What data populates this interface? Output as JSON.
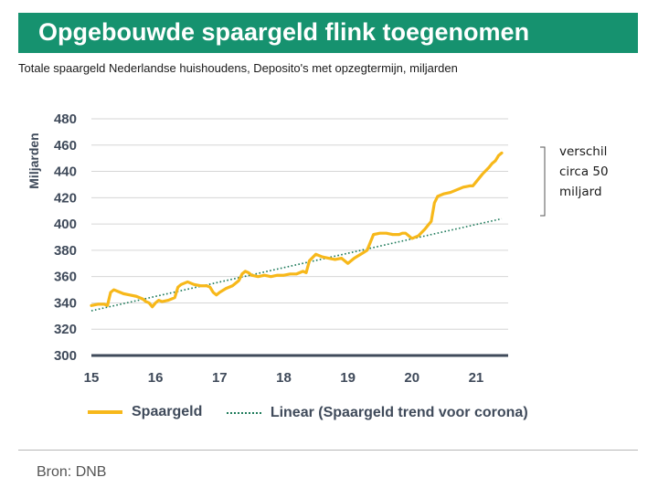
{
  "header": {
    "title": "Opgebouwde spaargeld flink toegenomen",
    "subtitle": "Totale spaargeld Nederlandse huishoudens, Deposito's met opzegtermijn, miljarden"
  },
  "annotation": [
    "verschil",
    "circa 50",
    "miljard"
  ],
  "source": "Bron: DNB",
  "colors": {
    "banner": "#16926f",
    "series": "#f7b81a",
    "trend": "#1d7a5a",
    "axis": "#3f4a5a"
  },
  "chart_data": {
    "type": "line",
    "ylabel": "Miljarden",
    "ylim": [
      300,
      480
    ],
    "yticks": [
      300,
      320,
      340,
      360,
      380,
      400,
      420,
      440,
      460,
      480
    ],
    "xlim": [
      15,
      21.5
    ],
    "xticks": [
      15,
      16,
      17,
      18,
      19,
      20,
      21
    ],
    "xtick_labels": [
      "15",
      "16",
      "17",
      "18",
      "19",
      "20",
      "21"
    ],
    "grid": true,
    "legend_position": "bottom",
    "series": [
      {
        "name": "Spaargeld",
        "x": [
          15.0,
          15.1,
          15.2,
          15.25,
          15.3,
          15.35,
          15.4,
          15.5,
          15.6,
          15.7,
          15.8,
          15.85,
          15.9,
          15.95,
          16.0,
          16.05,
          16.1,
          16.2,
          16.3,
          16.35,
          16.4,
          16.5,
          16.6,
          16.7,
          16.8,
          16.85,
          16.9,
          16.95,
          17.0,
          17.1,
          17.2,
          17.3,
          17.35,
          17.4,
          17.45,
          17.5,
          17.6,
          17.7,
          17.8,
          17.9,
          18.0,
          18.1,
          18.2,
          18.3,
          18.35,
          18.4,
          18.5,
          18.6,
          18.7,
          18.8,
          18.9,
          18.95,
          19.0,
          19.1,
          19.2,
          19.3,
          19.35,
          19.4,
          19.5,
          19.6,
          19.7,
          19.8,
          19.85,
          19.9,
          20.0,
          20.1,
          20.2,
          20.25,
          20.3,
          20.35,
          20.4,
          20.5,
          20.6,
          20.7,
          20.8,
          20.9,
          20.95,
          21.0,
          21.1,
          21.2,
          21.25,
          21.3,
          21.35,
          21.4
        ],
        "y": [
          338,
          339,
          339,
          338,
          348,
          350,
          349,
          347,
          346,
          345,
          343,
          341,
          340,
          337,
          340,
          342,
          341,
          342,
          344,
          352,
          354,
          356,
          354,
          353,
          353,
          352,
          348,
          346,
          348,
          351,
          353,
          357,
          362,
          364,
          363,
          361,
          360,
          361,
          360,
          361,
          361,
          362,
          362,
          364,
          363,
          372,
          377,
          375,
          374,
          373,
          374,
          372,
          370,
          374,
          377,
          380,
          386,
          392,
          393,
          393,
          392,
          392,
          393,
          393,
          389,
          391,
          396,
          399,
          402,
          416,
          421,
          423,
          424,
          426,
          428,
          429,
          429,
          432,
          438,
          443,
          446,
          448,
          452,
          454
        ]
      },
      {
        "name": "Linear (Spaargeld trend voor corona)",
        "x": [
          15.0,
          21.4
        ],
        "y": [
          334,
          404
        ]
      }
    ]
  }
}
